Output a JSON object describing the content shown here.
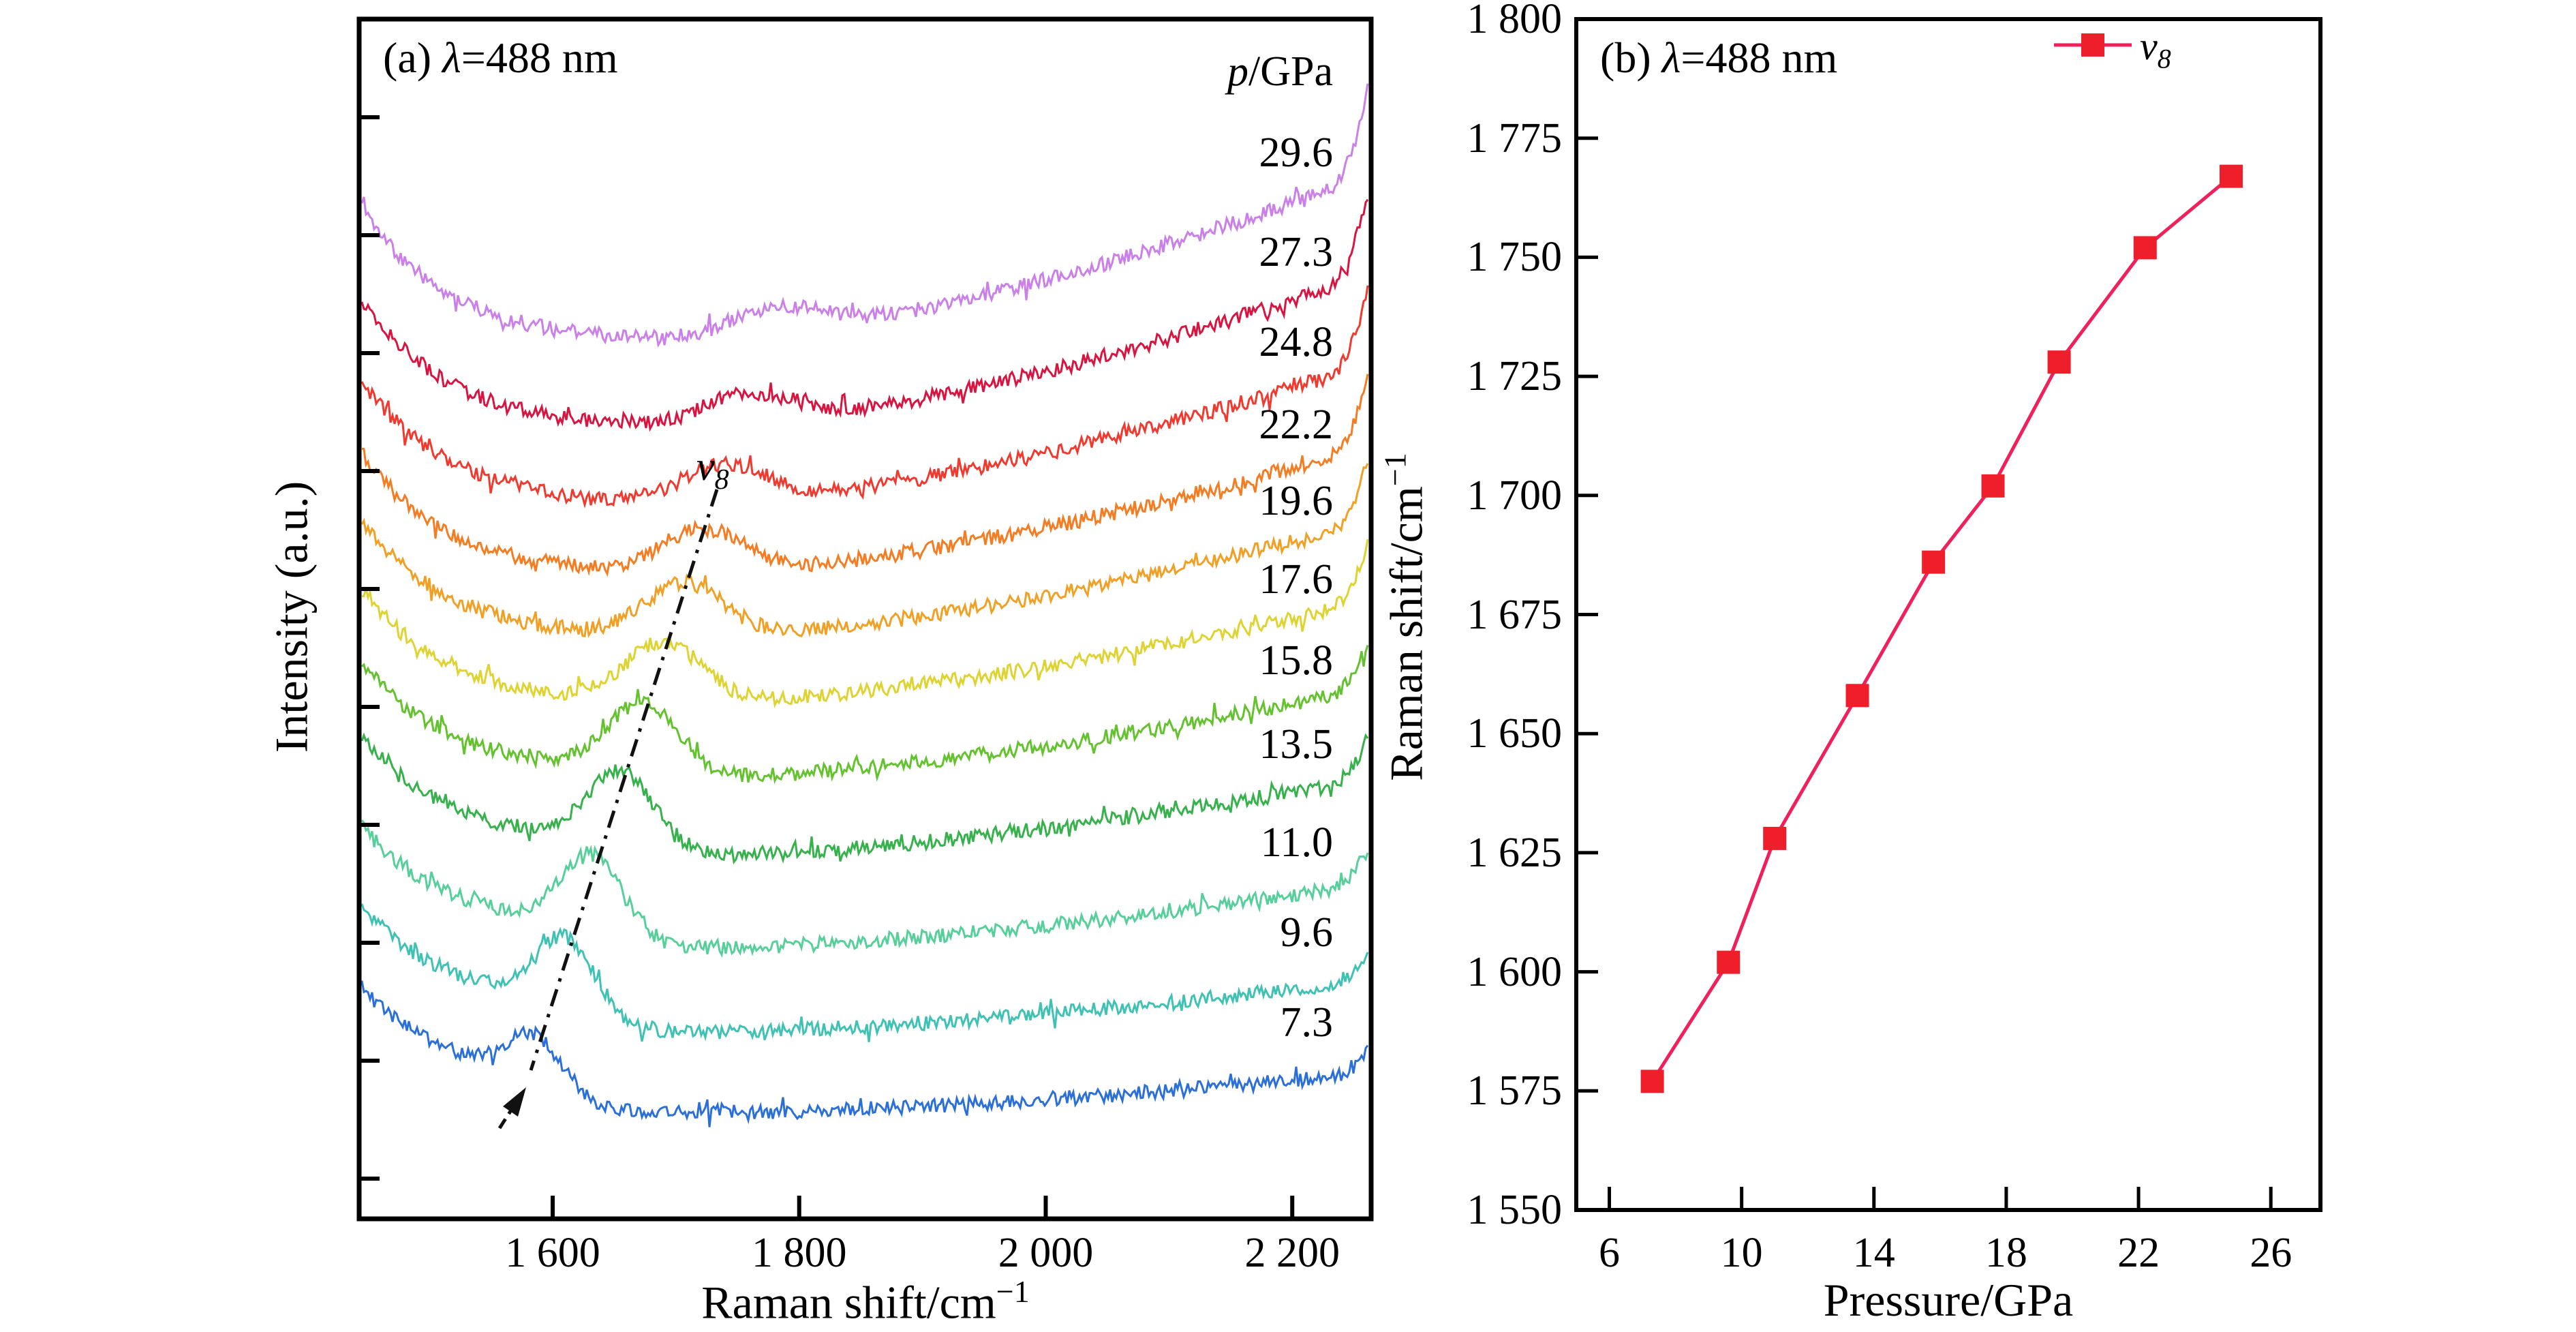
{
  "figure": {
    "panel_a": {
      "title": {
        "prefix": "(a) ",
        "sym": "λ",
        "suffix": "=488 nm"
      },
      "pressure_header": {
        "sym": "p",
        "suffix": "/GPa"
      },
      "xlabel": {
        "text": "Raman shift/cm",
        "sup": "−1"
      },
      "ylabel": "Intensity (a.u.)",
      "x_tick_labels": [
        "1 600",
        "1 800",
        "2 000",
        "2 200"
      ],
      "peak_annotation": {
        "sym": "v",
        "sub": "8"
      },
      "curves": [
        {
          "pressure": "7.3",
          "color": "#2b6fd8"
        },
        {
          "pressure": "9.6",
          "color": "#3fc2b4"
        },
        {
          "pressure": "11.0",
          "color": "#57cf9a"
        },
        {
          "pressure": "13.5",
          "color": "#36b14c"
        },
        {
          "pressure": "15.8",
          "color": "#63c22e"
        },
        {
          "pressure": "17.6",
          "color": "#ded331"
        },
        {
          "pressure": "19.6",
          "color": "#f0a125"
        },
        {
          "pressure": "22.2",
          "color": "#f47d23"
        },
        {
          "pressure": "24.8",
          "color": "#f03a30"
        },
        {
          "pressure": "27.3",
          "color": "#d81540"
        },
        {
          "pressure": "29.6",
          "color": "#ca80e8"
        }
      ]
    },
    "panel_b": {
      "title": {
        "prefix": "(b) ",
        "sym": "λ",
        "suffix": "=488 nm"
      },
      "xlabel": "Pressure/GPa",
      "ylabel": {
        "text": "Raman shift/cm",
        "sup": "−1"
      },
      "legend": {
        "sym": "v",
        "sub": "8"
      },
      "line_color": "#f0205a",
      "marker_color": "#ee1f2a",
      "x_tick_labels": [
        "6",
        "10",
        "14",
        "18",
        "22",
        "26"
      ],
      "y_tick_labels": [
        "1 550",
        "1 575",
        "1 600",
        "1 625",
        "1 650",
        "1 675",
        "1 700",
        "1 725",
        "1 750",
        "1 775",
        "1 800"
      ]
    }
  },
  "chart_data": [
    {
      "type": "line",
      "panel": "a",
      "title": "(a) λ=488 nm",
      "xlabel": "Raman shift/cm⁻¹",
      "ylabel": "Intensity (a.u.)",
      "xlim": [
        1443,
        2264
      ],
      "x_ticks": [
        1600,
        1800,
        2000,
        2200
      ],
      "y_axis": "arbitrary units; spectra vertically offset, no y tick labels",
      "annotation": "v8 peak traced by dash-dot arrow, shifting to higher wavenumber with increasing pressure",
      "series": [
        {
          "pressure_GPa": 7.3,
          "v8_peak_cm_1": 1577
        },
        {
          "pressure_GPa": 9.6,
          "v8_peak_cm_1": 1602
        },
        {
          "pressure_GPa": 11.0,
          "v8_peak_cm_1": 1628
        },
        {
          "pressure_GPa": 13.5,
          "v8_peak_cm_1": 1658
        },
        {
          "pressure_GPa": 15.8,
          "v8_peak_cm_1": 1686
        },
        {
          "pressure_GPa": 17.6,
          "v8_peak_cm_1": 1702
        },
        {
          "pressure_GPa": 19.6,
          "v8_peak_cm_1": 1728
        },
        {
          "pressure_GPa": 22.2,
          "v8_peak_cm_1": 1752
        },
        {
          "pressure_GPa": 24.8,
          "v8_peak_cm_1": 1767
        },
        {
          "pressure_GPa": 27.3,
          "v8_peak_cm_1": null
        },
        {
          "pressure_GPa": 29.6,
          "v8_peak_cm_1": null
        }
      ]
    },
    {
      "type": "line",
      "panel": "b",
      "title": "(b) λ=488 nm",
      "xlabel": "Pressure/GPa",
      "ylabel": "Raman shift/cm⁻¹",
      "xlim": [
        5,
        27.5
      ],
      "ylim": [
        1550,
        1800
      ],
      "x_ticks": [
        6,
        10,
        14,
        18,
        22,
        26
      ],
      "y_ticks": [
        1550,
        1575,
        1600,
        1625,
        1650,
        1675,
        1700,
        1725,
        1750,
        1775,
        1800
      ],
      "legend": [
        "v8"
      ],
      "legend_position": "upper center",
      "series": [
        {
          "name": "v8",
          "marker": "filled square",
          "x": [
            7.3,
            9.6,
            11.0,
            13.5,
            15.8,
            17.6,
            19.6,
            22.2,
            24.8
          ],
          "y": [
            1577,
            1602,
            1628,
            1658,
            1686,
            1702,
            1728,
            1752,
            1767
          ]
        }
      ]
    }
  ]
}
